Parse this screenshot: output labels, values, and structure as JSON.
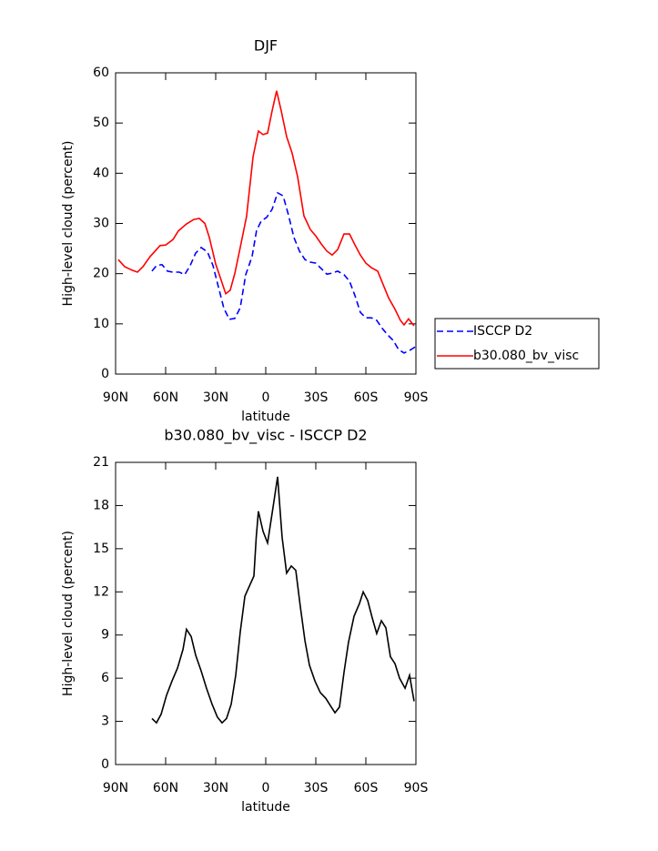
{
  "chart_data": [
    {
      "type": "line",
      "title": "DJF",
      "xlabel": "latitude",
      "ylabel": "High-level cloud (percent)",
      "xlim": [
        90,
        -90
      ],
      "xticks": [
        {
          "value": 90,
          "label": "90N"
        },
        {
          "value": 60,
          "label": "60N"
        },
        {
          "value": 30,
          "label": "30N"
        },
        0,
        {
          "value": -30,
          "label": "30S"
        },
        {
          "value": -60,
          "label": "60S"
        },
        {
          "value": -90,
          "label": "90S"
        }
      ],
      "ylim": [
        0,
        60
      ],
      "yticks": [
        0,
        10,
        20,
        30,
        40,
        50,
        60
      ],
      "legend": "right",
      "series": [
        {
          "name": "ISCCP D2",
          "color": "#0000ff",
          "linestyle": "dashed",
          "x": [
            68.2,
            65.5,
            62.2,
            58.9,
            55.6,
            51.8,
            48.6,
            45.3,
            42,
            38.7,
            34.9,
            31.6,
            28.4,
            25.1,
            21.8,
            18.5,
            15.3,
            12,
            8.2,
            5.5,
            2.7,
            -0.5,
            -3.8,
            -7.1,
            -10.4,
            -13.6,
            -16.9,
            -20.2,
            -23.5,
            -26.7,
            -30,
            -33.3,
            -36.6,
            -39.8,
            -43.1,
            -46.9,
            -50.2,
            -53.5,
            -56.7,
            -60,
            -63.3,
            -66.5,
            -69.8,
            -73.1,
            -76.4,
            -79.6,
            -82.9,
            -86.2,
            -89.5
          ],
          "values": [
            20.5,
            21.6,
            21.8,
            20.5,
            20.3,
            20.3,
            19.8,
            21.6,
            24.1,
            25.2,
            24.3,
            21.6,
            17.4,
            13.1,
            10.9,
            11.1,
            13.2,
            19.8,
            23.4,
            28.6,
            30.5,
            31.2,
            32.8,
            36.1,
            35.5,
            31.7,
            27.2,
            24.5,
            22.8,
            22.3,
            22.1,
            21,
            19.9,
            20.1,
            20.5,
            19.8,
            18.5,
            15.6,
            12.3,
            11.2,
            11.2,
            10.7,
            9.1,
            7.8,
            6.7,
            4.9,
            4.2,
            4.7,
            5.4
          ]
        },
        {
          "name": "b30.080_bv_visc",
          "color": "#ff0000",
          "linestyle": "solid",
          "x": [
            88.4,
            84.6,
            80.2,
            76.9,
            73.6,
            69.3,
            65.5,
            63.3,
            60,
            55.6,
            52.4,
            47.5,
            43.1,
            39.8,
            36.5,
            33.8,
            30,
            26.7,
            24,
            21.3,
            18.5,
            15.3,
            11.5,
            7.6,
            4.4,
            1.6,
            -1.1,
            -3.8,
            -6.5,
            -9.3,
            -12.5,
            -15.8,
            -19.1,
            -22.9,
            -26.7,
            -30,
            -33.3,
            -36.6,
            -39.8,
            -43.1,
            -46.9,
            -50.2,
            -53.5,
            -56.7,
            -60,
            -63.3,
            -67.1,
            -70.4,
            -73.6,
            -77.5,
            -80.7,
            -82.9,
            -85.6,
            -88.9
          ],
          "values": [
            22.8,
            21.4,
            20.7,
            20.3,
            21.4,
            23.4,
            24.8,
            25.6,
            25.7,
            26.8,
            28.5,
            29.9,
            30.8,
            31,
            30,
            27.2,
            21.9,
            18.7,
            16,
            16.7,
            20.1,
            25.2,
            31.4,
            43.3,
            48.4,
            47.7,
            48,
            52.4,
            56.4,
            52.4,
            47.3,
            44,
            39.3,
            31.5,
            28.8,
            27.5,
            25.9,
            24.5,
            23.7,
            24.8,
            27.9,
            27.9,
            25.7,
            23.7,
            22.1,
            21.2,
            20.5,
            17.8,
            15.2,
            12.9,
            10.7,
            9.8,
            11,
            9.6
          ]
        }
      ]
    },
    {
      "type": "line",
      "title": "b30.080_bv_visc - ISCCP D2",
      "xlabel": "latitude",
      "ylabel": "High-level cloud (percent)",
      "xlim": [
        90,
        -90
      ],
      "xticks": [
        {
          "value": 90,
          "label": "90N"
        },
        {
          "value": 60,
          "label": "60N"
        },
        {
          "value": 30,
          "label": "30N"
        },
        0,
        {
          "value": -30,
          "label": "30S"
        },
        {
          "value": -60,
          "label": "60S"
        },
        {
          "value": -90,
          "label": "90S"
        }
      ],
      "ylim": [
        0,
        21
      ],
      "yticks": [
        0,
        3,
        6,
        9,
        12,
        15,
        18,
        21
      ],
      "color": "#000000",
      "x": [
        68.2,
        65.5,
        62.7,
        59.5,
        56.2,
        52.9,
        49.6,
        47.5,
        44.7,
        42,
        38.7,
        35.5,
        32.2,
        29,
        26.2,
        23.5,
        20.7,
        18,
        15.3,
        12.5,
        9.8,
        7.1,
        5.7,
        4.4,
        1.6,
        -1.1,
        -4.4,
        -7.1,
        -9.8,
        -12.5,
        -15.3,
        -18,
        -20.7,
        -23.5,
        -26.2,
        -29.5,
        -32.7,
        -36,
        -38.7,
        -41.5,
        -44.2,
        -46.9,
        -49.6,
        -52.9,
        -56.2,
        -58.4,
        -61.1,
        -63.8,
        -66.5,
        -69.3,
        -72,
        -74.7,
        -77.5,
        -80.2,
        -83.5,
        -86.2,
        -88.9
      ],
      "values": [
        3.2,
        2.9,
        3.5,
        4.8,
        5.8,
        6.7,
        8,
        9.4,
        8.9,
        7.6,
        6.5,
        5.3,
        4.2,
        3.3,
        2.9,
        3.2,
        4.2,
        6.2,
        9.2,
        11.7,
        12.4,
        13.1,
        15.8,
        17.6,
        16.2,
        15.4,
        17.9,
        20,
        15.8,
        13.3,
        13.8,
        13.5,
        11,
        8.6,
        6.9,
        5.8,
        5,
        4.6,
        4.1,
        3.6,
        4,
        6.4,
        8.5,
        10.3,
        11.2,
        12,
        11.4,
        10.2,
        9.1,
        10,
        9.5,
        7.5,
        7,
        6,
        5.3,
        6.2,
        4.4
      ]
    }
  ]
}
